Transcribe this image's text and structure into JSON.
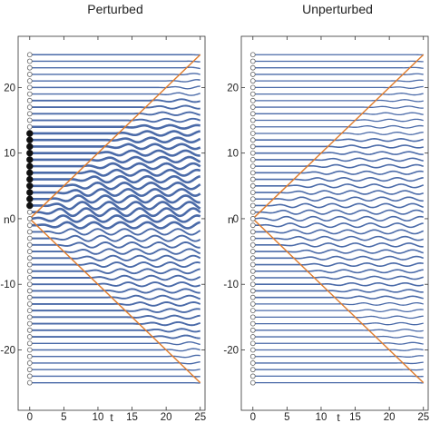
{
  "chart_data": [
    {
      "type": "line",
      "title": "Perturbed",
      "xlabel": "t",
      "ylabel": "n",
      "xlim": [
        -1.7,
        25.7
      ],
      "ylim": [
        -29.2,
        27.8
      ],
      "x_ticks": [
        "0",
        "5",
        "10",
        "15",
        "20",
        "25"
      ],
      "y_ticks": [
        "-20",
        "-10",
        "0",
        "10",
        "20"
      ],
      "y_tick_values": [
        -20,
        -10,
        0,
        10,
        20
      ],
      "x_tick_values": [
        0,
        5,
        10,
        15,
        20,
        25
      ],
      "sites": {
        "n_min": -25,
        "n_max": 25,
        "t_max": 25
      },
      "filled_initial_sites": [
        2,
        3,
        4,
        5,
        6,
        7,
        8,
        9,
        10,
        11,
        12,
        13
      ],
      "initial_excitation_site": 0,
      "light_cone": {
        "slope": 1.0,
        "color": "#e07b2a"
      },
      "series_color": "#4a6aa8",
      "perturbed": true
    },
    {
      "type": "line",
      "title": "Unperturbed",
      "xlabel": "t",
      "ylabel": "n",
      "xlim": [
        -1.7,
        25.7
      ],
      "ylim": [
        -29.2,
        27.8
      ],
      "x_ticks": [
        "0",
        "5",
        "10",
        "15",
        "20",
        "25"
      ],
      "y_ticks": [
        "-20",
        "-10",
        "0",
        "10",
        "20"
      ],
      "y_tick_values": [
        -20,
        -10,
        0,
        10,
        20
      ],
      "x_tick_values": [
        0,
        5,
        10,
        15,
        20,
        25
      ],
      "sites": {
        "n_min": -25,
        "n_max": 25,
        "t_max": 25
      },
      "filled_initial_sites": [],
      "initial_excitation_site": 0,
      "light_cone": {
        "slope": 1.0,
        "color": "#e07b2a"
      },
      "series_color": "#4a6aa8",
      "perturbed": false
    }
  ]
}
